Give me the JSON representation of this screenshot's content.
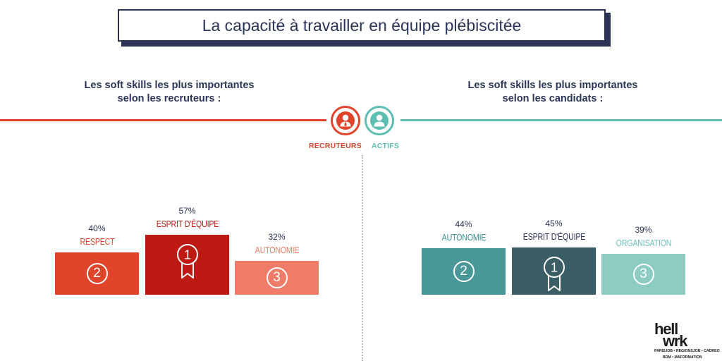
{
  "title": "La capacité à travailler en équipe plébiscitée",
  "left_heading": [
    "Les soft skills les plus importantes",
    "selon les recruteurs :"
  ],
  "right_heading": [
    "Les soft skills les plus importantes",
    "selon les candidats :"
  ],
  "tags": {
    "left": "RECRUTEURS",
    "right": "ACTIFS"
  },
  "icons": {
    "recruiter": "recruiter-person-icon",
    "candidate": "candidate-person-icon",
    "medal": "medal-ribbon-icon"
  },
  "colors": {
    "navy": "#2b3457",
    "recruiter_accent": "#e0452c",
    "candidate_accent": "#5dbfb1",
    "recruiter_bars": {
      "rank1": "#be1a14",
      "rank2": "#e0452c",
      "rank3": "#ef7c69"
    },
    "candidate_bars": {
      "rank1": "#3b5d66",
      "rank2": "#4a9797",
      "rank3": "#8cccc3"
    },
    "recruiter_labels": {
      "rank1": "#be1a14",
      "rank2": "#e0452c",
      "rank3": "#ef7c69"
    },
    "candidate_labels": {
      "rank1": "#2b3457",
      "rank2": "#3a8d8d",
      "rank3": "#6cbfb4"
    }
  },
  "logo": {
    "word1": "hell",
    "word2": "wrk",
    "line1": "PARISJOB • REGIONSJOB • CADREO",
    "line2": "BDM • MAFORMATION"
  },
  "chart_data": [
    {
      "type": "bar",
      "categories": [
        "RESPECT",
        "ESPRIT D'ÉQUIPE",
        "AUTONOMIE"
      ],
      "values": [
        40,
        57,
        32
      ],
      "value_labels": [
        "40%",
        "57%",
        "32%"
      ],
      "ranks": [
        "2",
        "1",
        "3"
      ],
      "ylim": [
        0,
        100
      ],
      "title": "",
      "xlabel": "",
      "ylabel": "",
      "grid": false
    },
    {
      "type": "bar",
      "categories": [
        "AUTONOMIE",
        "ESPRIT D'ÉQUIPE",
        "ORGANISATION"
      ],
      "values": [
        44,
        45,
        39
      ],
      "value_labels": [
        "44%",
        "45%",
        "39%"
      ],
      "ranks": [
        "2",
        "1",
        "3"
      ],
      "ylim": [
        0,
        100
      ],
      "title": "",
      "xlabel": "",
      "ylabel": "",
      "grid": false
    }
  ]
}
